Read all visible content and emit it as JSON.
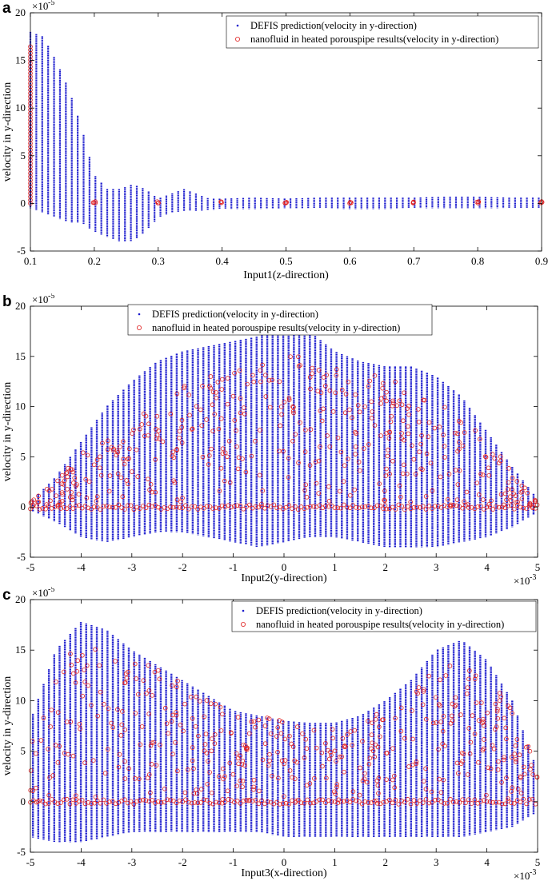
{
  "chart_data": [
    {
      "type": "scatter",
      "panel_label": "a",
      "xlabel": "Input1(z-direction)",
      "ylabel": "velocity in y-direction",
      "xlim": [
        0.1,
        0.9
      ],
      "ylim": [
        -5,
        20
      ],
      "xticks": [
        "0.1",
        "0.2",
        "0.3",
        "0.4",
        "0.5",
        "0.6",
        "0.7",
        "0.8",
        "0.9"
      ],
      "yticks": [
        "-5",
        "0",
        "5",
        "10",
        "15",
        "20"
      ],
      "y_exponent": "×10",
      "y_exponent_power": "-5",
      "x_exponent": "",
      "x_exponent_power": "",
      "legend": [
        "DEFIS prediction(velocity in y-direction)",
        "nanofluid in heated porouspipe results(velocity in y-direction)"
      ],
      "legend_position": "top-right",
      "series": [
        {
          "name": "DEFIS prediction(velocity in y-direction)",
          "marker": "dot",
          "color": "#1a1acd",
          "envelope_x": [
            0.1,
            0.12,
            0.14,
            0.16,
            0.18,
            0.2,
            0.22,
            0.24,
            0.26,
            0.28,
            0.3,
            0.32,
            0.34,
            0.36,
            0.38,
            0.4,
            0.45,
            0.5,
            0.55,
            0.6,
            0.65,
            0.7,
            0.75,
            0.8,
            0.85,
            0.9
          ],
          "envelope_upper": [
            18,
            17.5,
            15,
            12,
            8,
            3,
            1.5,
            1.5,
            2,
            1.5,
            0.5,
            1,
            1.5,
            1,
            0.5,
            0.5,
            0.6,
            0.5,
            0.6,
            0.6,
            0.6,
            0.6,
            0.7,
            0.7,
            0.6,
            0.6
          ],
          "envelope_lower": [
            -0.5,
            -1,
            -1.5,
            -2,
            -2,
            -3,
            -3.5,
            -4,
            -4,
            -3,
            -1.5,
            -1,
            -0.8,
            -0.8,
            -0.7,
            -0.6,
            -0.6,
            -0.5,
            -0.5,
            -0.6,
            -0.6,
            -0.5,
            -0.5,
            -0.5,
            -0.5,
            -0.5
          ]
        },
        {
          "name": "nanofluid in heated porouspipe results(velocity in y-direction)",
          "marker": "circle",
          "color": "#e02020",
          "x": [
            0.1,
            0.2,
            0.3,
            0.4,
            0.5,
            0.6,
            0.7,
            0.8,
            0.9
          ],
          "y_range": [
            [
              0,
              16.5
            ],
            [
              0,
              0.2
            ],
            [
              0,
              0.2
            ],
            [
              0,
              0.2
            ],
            [
              0,
              0.2
            ],
            [
              0,
              0.2
            ],
            [
              0,
              0.2
            ],
            [
              0,
              0.2
            ],
            [
              0,
              0.2
            ]
          ]
        }
      ]
    },
    {
      "type": "scatter",
      "panel_label": "b",
      "xlabel": "Input2(y-direction)",
      "ylabel": "velocity in y-direction",
      "xlim": [
        -5,
        5
      ],
      "ylim": [
        -5,
        20
      ],
      "xticks": [
        "-5",
        "-4",
        "-3",
        "-2",
        "-1",
        "0",
        "1",
        "2",
        "3",
        "4",
        "5"
      ],
      "yticks": [
        "-5",
        "0",
        "5",
        "10",
        "15",
        "20"
      ],
      "y_exponent": "×10",
      "y_exponent_power": "-5",
      "x_exponent": "×10",
      "x_exponent_power": "-3",
      "legend": [
        "DEFIS prediction(velocity in y-direction)",
        "nanofluid in heated porouspipe results(velocity in y-direction)"
      ],
      "legend_position": "top-center",
      "series": [
        {
          "name": "DEFIS prediction(velocity in y-direction)",
          "marker": "dot",
          "color": "#1a1acd",
          "envelope_x": [
            -5,
            -4.5,
            -4,
            -3.5,
            -3,
            -2.5,
            -2,
            -1.5,
            -1,
            -0.5,
            0,
            0.5,
            1,
            1.5,
            2,
            2.5,
            3,
            3.5,
            4,
            4.5,
            5
          ],
          "envelope_upper": [
            0.5,
            3,
            6.5,
            10,
            12.5,
            14.5,
            15.5,
            16,
            16.5,
            17,
            17.8,
            17.5,
            15.5,
            14.5,
            14,
            14,
            13,
            11,
            7.5,
            4,
            0.8
          ],
          "envelope_lower": [
            -0.3,
            -1.5,
            -3,
            -3.5,
            -3,
            -2.5,
            -2.5,
            -3,
            -3.5,
            -4,
            -3.5,
            -3,
            -3,
            -3.5,
            -4,
            -4,
            -4,
            -3.5,
            -3,
            -2,
            -0.5
          ]
        },
        {
          "name": "nanofluid in heated porouspipe results(velocity in y-direction)",
          "marker": "circle",
          "color": "#e02020",
          "envelope_x": [
            -5,
            -4.5,
            -4,
            -3.5,
            -3,
            -2.5,
            -2,
            -1.5,
            -1,
            -0.5,
            0,
            0.5,
            1,
            1.5,
            2,
            2.5,
            3,
            3.5,
            4,
            4.5,
            5
          ],
          "envelope_upper": [
            0.5,
            2.5,
            5.5,
            7,
            8.5,
            10.5,
            12,
            13,
            13.5,
            14,
            15.5,
            15,
            14,
            13.5,
            13,
            12.5,
            11.5,
            9.5,
            7,
            3.5,
            0.5
          ],
          "baseline": 0
        }
      ]
    },
    {
      "type": "scatter",
      "panel_label": "c",
      "xlabel": "Input3(x-direction)",
      "ylabel": "velocity in y-direction",
      "xlim": [
        -5,
        5
      ],
      "ylim": [
        -5,
        20
      ],
      "xticks": [
        "-5",
        "-4",
        "-3",
        "-2",
        "-1",
        "0",
        "1",
        "2",
        "3",
        "4",
        "5"
      ],
      "yticks": [
        "-5",
        "0",
        "5",
        "10",
        "15",
        "20"
      ],
      "y_exponent": "×10",
      "y_exponent_power": "-5",
      "x_exponent": "×10",
      "x_exponent_power": "-3",
      "legend": [
        "DEFIS prediction(velocity in y-direction)",
        "nanofluid in heated porouspipe results(velocity in y-direction)"
      ],
      "legend_position": "top-right",
      "series": [
        {
          "name": "DEFIS prediction(velocity in y-direction)",
          "marker": "dot",
          "color": "#1a1acd",
          "envelope_x": [
            -5,
            -4.5,
            -4,
            -3.5,
            -3,
            -2.5,
            -2,
            -1.5,
            -1,
            -0.5,
            0,
            0.5,
            1,
            1.5,
            2,
            2.5,
            3,
            3.5,
            4,
            4.5,
            5
          ],
          "envelope_upper": [
            8,
            15,
            17.8,
            17,
            15,
            13.5,
            12,
            10.5,
            9,
            8.5,
            8,
            7.8,
            7.8,
            8.5,
            10,
            12,
            15,
            16,
            14,
            10,
            3
          ],
          "envelope_lower": [
            -3.5,
            -4,
            -4,
            -3.5,
            -3,
            -3,
            -3,
            -3,
            -3,
            -3,
            -3.5,
            -3.5,
            -3.5,
            -3.5,
            -3.5,
            -3.5,
            -3.5,
            -3.5,
            -3,
            -2.5,
            -1
          ]
        },
        {
          "name": "nanofluid in heated porouspipe results(velocity in y-direction)",
          "marker": "circle",
          "color": "#e02020",
          "envelope_x": [
            -5,
            -4.5,
            -4,
            -3.5,
            -3,
            -2.5,
            -2,
            -1.5,
            -1,
            -0.5,
            0,
            0.5,
            1,
            1.5,
            2,
            2.5,
            3,
            3.5,
            4,
            4.5,
            5
          ],
          "envelope_upper": [
            6,
            13,
            16,
            16.5,
            15,
            13.5,
            12,
            10,
            9,
            8.5,
            8,
            7.5,
            7.5,
            8,
            9,
            11,
            13,
            14,
            12.5,
            10,
            4
          ],
          "baseline": 0
        }
      ]
    }
  ]
}
